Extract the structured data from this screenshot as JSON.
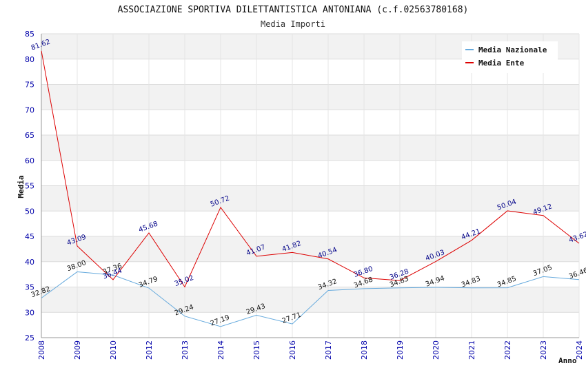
{
  "chart_data": {
    "type": "line",
    "title": "ASSOCIAZIONE SPORTIVA DILETTANTISTICA ANTONIANA (c.f.02563780168)",
    "subtitle": "Media Importi",
    "xlabel": "Anno",
    "ylabel": "Media",
    "ylim": [
      25,
      85
    ],
    "yticks": [
      25,
      30,
      35,
      40,
      45,
      50,
      55,
      60,
      65,
      70,
      75,
      80,
      85
    ],
    "categories": [
      "2008",
      "2009",
      "2010",
      "2012",
      "2013",
      "2014",
      "2015",
      "2016",
      "2017",
      "2018",
      "2019",
      "2020",
      "2021",
      "2022",
      "2023",
      "2024"
    ],
    "grid": true,
    "legend_position": "top-right",
    "series": [
      {
        "name": "Media Nazionale",
        "color": "#66aadd",
        "values": [
          32.82,
          38.0,
          37.36,
          34.79,
          29.24,
          27.19,
          29.43,
          27.71,
          34.32,
          34.68,
          34.83,
          34.94,
          34.83,
          34.85,
          37.05,
          36.46
        ],
        "labels": [
          "32.82",
          "38.00",
          "37.36",
          "34.79",
          "29.24",
          "27.19",
          "29.43",
          "27.71",
          "34.32",
          "34.68",
          "34.83",
          "34.94",
          "34.83",
          "34.85",
          "37.05",
          "36.46"
        ]
      },
      {
        "name": "Media Ente",
        "color": "#dd0000",
        "values": [
          81.62,
          43.09,
          36.44,
          45.68,
          35.02,
          50.72,
          41.07,
          41.82,
          40.54,
          36.8,
          36.28,
          40.03,
          44.21,
          50.04,
          49.12,
          43.62
        ],
        "labels": [
          "81.62",
          "43.09",
          "36.44",
          "45.68",
          "35.02",
          "50.72",
          "41.07",
          "41.82",
          "40.54",
          "36.80",
          "36.28",
          "40.03",
          "44.21",
          "50.04",
          "49.12",
          "43.62"
        ]
      }
    ]
  }
}
